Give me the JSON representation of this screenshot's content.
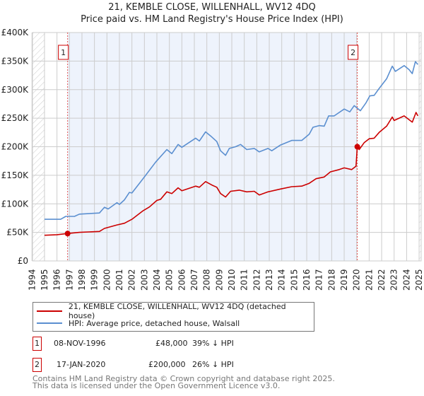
{
  "title": "21, KEMBLE CLOSE, WILLENHALL, WV12 4DQ",
  "subtitle": "Price paid vs. HM Land Registry's House Price Index (HPI)",
  "legend": {
    "property": "21, KEMBLE CLOSE, WILLENHALL, WV12 4DQ (detached house)",
    "hpi": "HPI: Average price, detached house, Walsall"
  },
  "transactions": [
    {
      "num": "1",
      "date": "08-NOV-1996",
      "price": "£48,000",
      "hpi_diff": "39% ↓ HPI"
    },
    {
      "num": "2",
      "date": "17-JAN-2020",
      "price": "£200,000",
      "hpi_diff": "26% ↓ HPI"
    }
  ],
  "footer": {
    "line1": "Contains HM Land Registry data © Crown copyright and database right 2025.",
    "line2": "This data is licensed under the Open Government Licence v3.0."
  },
  "colors": {
    "property": "#cc0000",
    "hpi": "#5b8fd0",
    "shade": "#eef3fc"
  },
  "chart_data": {
    "type": "line",
    "xlim": [
      1994,
      2025.2
    ],
    "ylim": [
      0,
      400000
    ],
    "y_ticks": [
      0,
      50000,
      100000,
      150000,
      200000,
      250000,
      300000,
      350000,
      400000
    ],
    "y_tick_labels": [
      "£0",
      "£50K",
      "£100K",
      "£150K",
      "£200K",
      "£250K",
      "£300K",
      "£350K",
      "£400K"
    ],
    "x_ticks": [
      "1994",
      "1995",
      "1996",
      "1997",
      "1998",
      "1999",
      "2000",
      "2001",
      "2002",
      "2003",
      "2004",
      "2005",
      "2006",
      "2007",
      "2008",
      "2009",
      "2010",
      "2011",
      "2012",
      "2013",
      "2014",
      "2015",
      "2016",
      "2017",
      "2018",
      "2019",
      "2020",
      "2021",
      "2022",
      "2023",
      "2024",
      "2025"
    ],
    "grid": true,
    "legend_position": "below",
    "sales": [
      {
        "label": "1",
        "x": 1996.85,
        "y": 48000
      },
      {
        "label": "2",
        "x": 2020.05,
        "y": 200000
      }
    ],
    "series": [
      {
        "name": "21, KEMBLE CLOSE, WILLENHALL, WV12 4DQ (detached house)",
        "x": [
          1995.0,
          1996.0,
          1996.85,
          1997.8,
          1999.4,
          1999.8,
          2000.8,
          2001.4,
          2002.0,
          2002.9,
          2003.4,
          2004.0,
          2004.3,
          2004.8,
          2005.2,
          2005.7,
          2006.0,
          2007.1,
          2007.4,
          2007.9,
          2008.4,
          2008.8,
          2009.1,
          2009.5,
          2009.9,
          2010.6,
          2011.2,
          2011.8,
          2012.2,
          2012.9,
          2013.9,
          2014.8,
          2015.6,
          2016.2,
          2016.75,
          2017.4,
          2017.9,
          2018.6,
          2019.0,
          2019.6,
          2019.95,
          2020.05,
          2020.2,
          2020.6,
          2021.0,
          2021.4,
          2021.8,
          2022.4,
          2022.85,
          2023.0,
          2023.8,
          2024.45,
          2024.75,
          2024.9
        ],
        "y": [
          45000,
          46000,
          48000,
          50000,
          51600,
          57000,
          63000,
          66000,
          73000,
          88000,
          94500,
          106000,
          108000,
          121000,
          118000,
          128000,
          123000,
          131000,
          129000,
          139000,
          133000,
          129000,
          118000,
          112000,
          122000,
          124000,
          121000,
          122000,
          115500,
          121000,
          126000,
          130000,
          131000,
          136000,
          144000,
          147000,
          156000,
          160000,
          163000,
          160000,
          166000,
          200000,
          195000,
          207000,
          214000,
          215000,
          225000,
          236000,
          252000,
          246000,
          254000,
          243000,
          260000,
          254000
        ]
      },
      {
        "name": "HPI: Average price, detached house, Walsall",
        "x": [
          1995.0,
          1996.3,
          1996.7,
          1997.4,
          1997.8,
          1999.4,
          1999.8,
          2000.1,
          2000.8,
          2001.0,
          2001.4,
          2001.8,
          2002.0,
          2003.0,
          2003.9,
          2004.8,
          2005.2,
          2005.7,
          2006.0,
          2007.1,
          2007.4,
          2007.9,
          2008.3,
          2008.8,
          2009.1,
          2009.5,
          2009.8,
          2010.3,
          2010.7,
          2011.2,
          2011.8,
          2012.2,
          2012.9,
          2013.2,
          2013.9,
          2014.8,
          2015.6,
          2016.2,
          2016.5,
          2017.0,
          2017.4,
          2017.75,
          2018.2,
          2019.0,
          2019.45,
          2019.8,
          2020.3,
          2020.75,
          2021.05,
          2021.4,
          2021.8,
          2022.4,
          2022.85,
          2023.1,
          2023.8,
          2024.2,
          2024.45,
          2024.7,
          2024.9
        ],
        "y": [
          73000,
          73000,
          78000,
          78000,
          82000,
          84000,
          94000,
          91000,
          102000,
          99000,
          107000,
          120000,
          119000,
          147000,
          173000,
          195000,
          188000,
          204000,
          199000,
          215000,
          210000,
          226000,
          219000,
          209000,
          193000,
          185000,
          197000,
          200000,
          204000,
          195000,
          197000,
          191000,
          197000,
          193000,
          203000,
          211000,
          211000,
          222000,
          234000,
          237000,
          236000,
          254000,
          254000,
          266000,
          261000,
          272000,
          263000,
          277000,
          289000,
          290000,
          302000,
          319000,
          341000,
          332000,
          342000,
          335000,
          328000,
          349000,
          344000
        ]
      }
    ]
  }
}
